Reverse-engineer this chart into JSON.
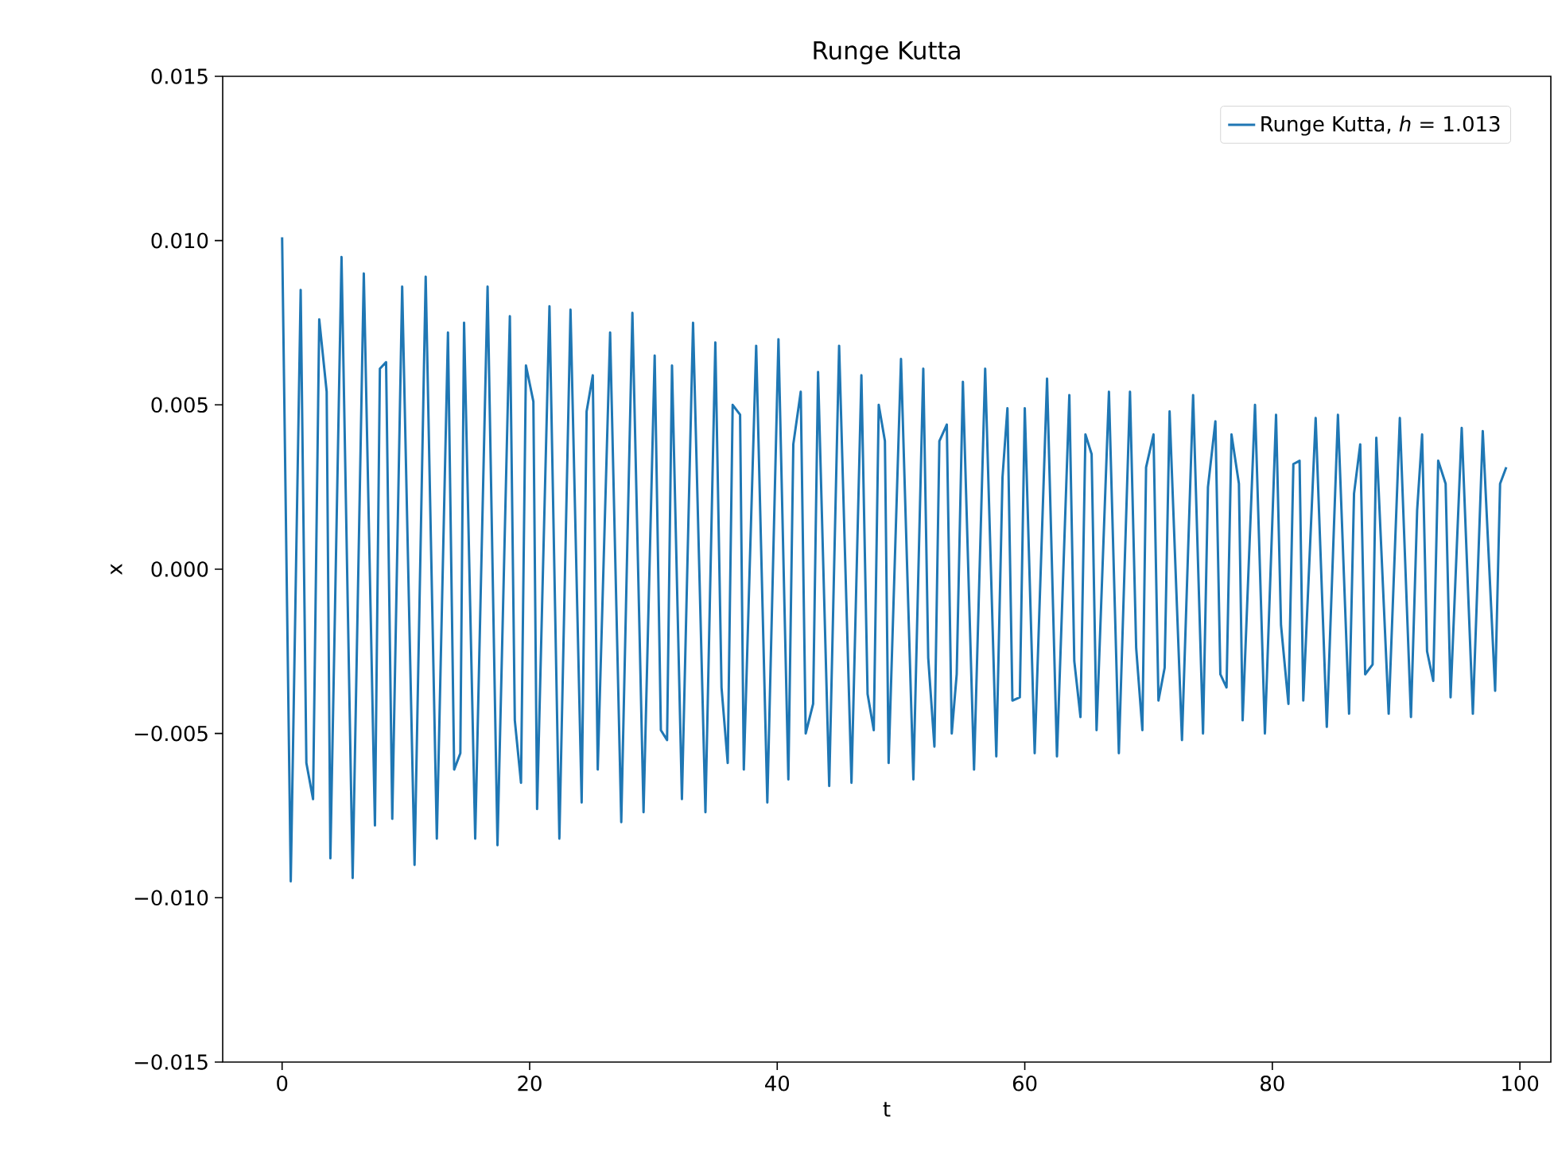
{
  "chart_data": {
    "type": "line",
    "title": "Runge Kutta",
    "xlabel": "t",
    "ylabel": "x",
    "series": [
      {
        "name": "Runge Kutta, *h* = 1.013",
        "color": "#1f77b4",
        "x": [
          0,
          0.7,
          1.5,
          1.96,
          2.5,
          3.0,
          3.6,
          3.9,
          4.8,
          5.7,
          6.6,
          7.5,
          7.9,
          8.4,
          8.9,
          9.7,
          10.7,
          11.6,
          12.5,
          13.4,
          13.9,
          14.4,
          14.7,
          15.6,
          16.6,
          17.4,
          18.4,
          18.8,
          19.3,
          19.7,
          20.3,
          20.6,
          21.6,
          22.4,
          23.3,
          24.2,
          24.6,
          25.1,
          25.5,
          26.5,
          27.4,
          28.3,
          29.2,
          30.1,
          30.6,
          31.1,
          31.5,
          32.3,
          33.2,
          34.2,
          35.0,
          35.5,
          36.0,
          36.4,
          37.0,
          37.3,
          38.3,
          39.2,
          40.1,
          40.9,
          41.3,
          41.9,
          42.3,
          42.9,
          43.3,
          44.2,
          45.0,
          46.0,
          46.8,
          47.3,
          47.8,
          48.2,
          48.7,
          49.0,
          50.0,
          51.0,
          51.8,
          52.2,
          52.7,
          53.1,
          53.7,
          54.1,
          54.5,
          55.0,
          55.9,
          56.8,
          57.7,
          58.2,
          58.6,
          59.0,
          59.6,
          60.0,
          60.8,
          61.8,
          62.6,
          63.6,
          64.0,
          64.5,
          64.9,
          65.4,
          65.8,
          66.8,
          67.6,
          68.5,
          69.0,
          69.5,
          69.8,
          70.4,
          70.8,
          71.3,
          71.7,
          72.7,
          73.6,
          74.4,
          74.8,
          75.4,
          75.8,
          76.3,
          76.7,
          77.3,
          77.6,
          78.6,
          79.4,
          80.3,
          80.7,
          81.3,
          81.7,
          82.2,
          82.5,
          83.5,
          84.4,
          85.3,
          86.2,
          86.6,
          87.1,
          87.5,
          88.1,
          88.4,
          89.4,
          90.3,
          91.2,
          91.7,
          92.1,
          92.5,
          93.0,
          93.4,
          94.0,
          94.4,
          95.3,
          96.2,
          97.0,
          98.0,
          98.4,
          98.9
        ],
        "values": [
          0.0101,
          -0.0095,
          0.0085,
          -0.0059,
          -0.007,
          0.0076,
          0.0054,
          -0.0088,
          0.0095,
          -0.0094,
          0.009,
          -0.0078,
          0.0061,
          0.0063,
          -0.0076,
          0.0086,
          -0.009,
          0.0089,
          -0.0082,
          0.0072,
          -0.0061,
          -0.0056,
          0.0075,
          -0.0082,
          0.0086,
          -0.0084,
          0.0077,
          -0.0046,
          -0.0065,
          0.0062,
          0.0051,
          -0.0073,
          0.008,
          -0.0082,
          0.0079,
          -0.0071,
          0.0048,
          0.0059,
          -0.0061,
          0.0072,
          -0.0077,
          0.0078,
          -0.0074,
          0.0065,
          -0.0049,
          -0.0052,
          0.0062,
          -0.007,
          0.0075,
          -0.0074,
          0.0069,
          -0.0036,
          -0.0059,
          0.005,
          0.0047,
          -0.0061,
          0.0068,
          -0.0071,
          0.007,
          -0.0064,
          0.0038,
          0.0054,
          -0.005,
          -0.0041,
          0.006,
          -0.0066,
          0.0068,
          -0.0065,
          0.0059,
          -0.0038,
          -0.0049,
          0.005,
          0.0039,
          -0.0059,
          0.0064,
          -0.0064,
          0.0061,
          -0.0027,
          -0.0054,
          0.0039,
          0.0044,
          -0.005,
          -0.0032,
          0.0057,
          -0.0061,
          0.0061,
          -0.0057,
          0.0028,
          0.0049,
          -0.004,
          -0.0039,
          0.0049,
          -0.0056,
          0.0058,
          -0.0057,
          0.0053,
          -0.0028,
          -0.0045,
          0.0041,
          0.0035,
          -0.0049,
          0.0054,
          -0.0056,
          0.0054,
          -0.0024,
          -0.0049,
          0.0031,
          0.0041,
          -0.004,
          -0.003,
          0.0048,
          -0.0052,
          0.0053,
          -0.005,
          0.0025,
          0.0045,
          -0.0032,
          -0.0036,
          0.0041,
          0.0026,
          -0.0046,
          0.005,
          -0.005,
          0.0047,
          -0.0017,
          -0.0041,
          0.0032,
          0.0033,
          -0.004,
          0.0046,
          -0.0048,
          0.0047,
          -0.0044,
          0.0023,
          0.0038,
          -0.0032,
          -0.0029,
          0.004,
          -0.0044,
          0.0046,
          -0.0045,
          0.0018,
          0.0041,
          -0.0025,
          -0.0034,
          0.0033,
          0.0026,
          -0.0039,
          0.0043,
          -0.0044,
          0.0042,
          -0.0037,
          0.0026,
          0.0031
        ]
      }
    ],
    "xlim": [
      -4.8,
      102.5
    ],
    "ylim": [
      -0.015,
      0.015
    ],
    "xticks": [
      0,
      20,
      40,
      60,
      80,
      100
    ],
    "yticks": [
      {
        "value": -0.015,
        "label": "−0.015"
      },
      {
        "value": -0.01,
        "label": "−0.010"
      },
      {
        "value": -0.005,
        "label": "−0.005"
      },
      {
        "value": 0,
        "label": "0.000"
      },
      {
        "value": 0.005,
        "label": "0.005"
      },
      {
        "value": 0.01,
        "label": "0.010"
      },
      {
        "value": 0.015,
        "label": "0.015"
      }
    ],
    "legend": "top right"
  }
}
